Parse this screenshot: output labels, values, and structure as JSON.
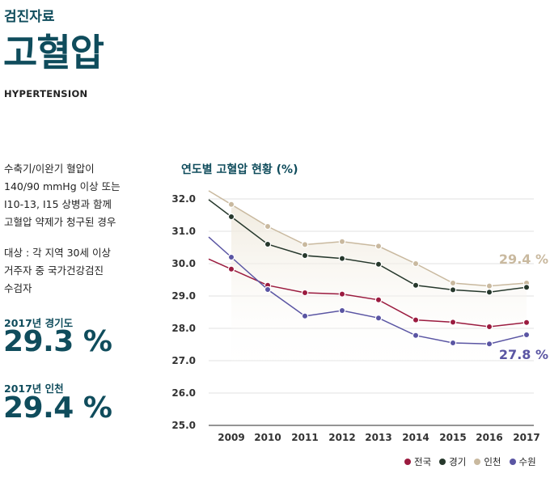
{
  "header": {
    "section": "검진자료",
    "title": "고혈압",
    "subtitle": "HYPERTENSION"
  },
  "description": {
    "definition": [
      "수축기/이완기 혈압이",
      "140/90 mmHg 이상 또는",
      "I10-13, I15 상병과 함께",
      "고혈압 약제가 청구된 경우"
    ],
    "target": [
      "대상 : 각 지역 30세 이상",
      "거주자 중 국가건강검진",
      "수검자"
    ]
  },
  "stats": [
    {
      "label": "2017년 경기도",
      "value": "29.3 %"
    },
    {
      "label": "2017년 인천",
      "value": "29.4 %"
    }
  ],
  "chart_data": {
    "type": "line",
    "title": "연도별 고혈압 현황 (%)",
    "categories": [
      "2009",
      "2010",
      "2011",
      "2012",
      "2013",
      "2014",
      "2015",
      "2016",
      "2017"
    ],
    "ylim": [
      25.0,
      32.0
    ],
    "yticks": [
      "25.0",
      "26.0",
      "27.0",
      "28.0",
      "29.0",
      "30.0",
      "31.0",
      "32.0"
    ],
    "grid": true,
    "legend_position": "bottom-right",
    "series": [
      {
        "name": "전국",
        "color": "#9b1b3f",
        "values": [
          29.83,
          29.33,
          29.1,
          29.06,
          28.88,
          28.26,
          28.19,
          28.05,
          28.18
        ]
      },
      {
        "name": "경기",
        "color": "#26382c",
        "values": [
          31.45,
          30.6,
          30.25,
          30.16,
          29.98,
          29.33,
          29.19,
          29.12,
          29.27
        ]
      },
      {
        "name": "인천",
        "color": "#c9b99f",
        "values": [
          31.83,
          31.15,
          30.59,
          30.68,
          30.54,
          30.0,
          29.4,
          29.31,
          29.4
        ]
      },
      {
        "name": "수원",
        "color": "#5a55a3",
        "values": [
          30.2,
          29.2,
          28.38,
          28.55,
          28.32,
          27.78,
          27.55,
          27.52,
          27.8
        ]
      }
    ],
    "annotations": [
      {
        "series": "인천",
        "text": "29.4 %"
      },
      {
        "series": "수원",
        "text": "27.8 %"
      }
    ]
  }
}
